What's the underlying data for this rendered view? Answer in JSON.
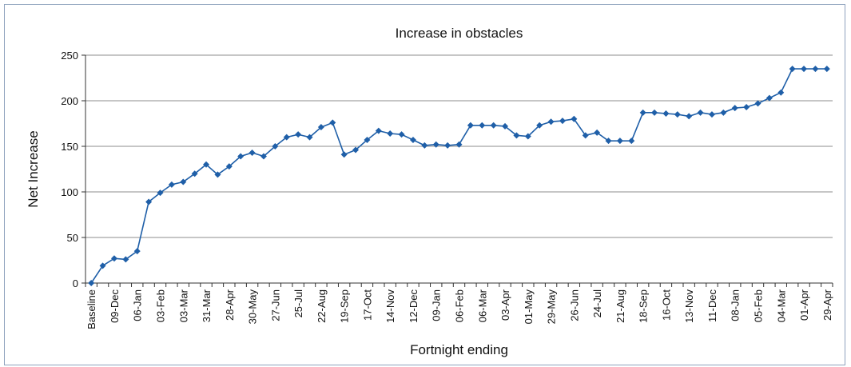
{
  "chart_data": {
    "type": "line",
    "title": "Increase in obstacles",
    "xlabel": "Fortnight ending",
    "ylabel": "Net Increase",
    "ylim": [
      0,
      250
    ],
    "yticks": [
      0,
      50,
      100,
      150,
      200,
      250
    ],
    "grid": "horizontal",
    "legend": "none",
    "line_color": "#1f5fa8",
    "categories": [
      "Baseline",
      "",
      "09-Dec",
      "",
      "06-Jan",
      "",
      "03-Feb",
      "",
      "03-Mar",
      "",
      "31-Mar",
      "",
      "28-Apr",
      "",
      "30-May",
      "",
      "27-Jun",
      "",
      "25-Jul",
      "",
      "22-Aug",
      "",
      "19-Sep",
      "",
      "17-Oct",
      "",
      "14-Nov",
      "",
      "12-Dec",
      "",
      "09-Jan",
      "",
      "06-Feb",
      "",
      "06-Mar",
      "",
      "03-Apr",
      "",
      "01-May",
      "",
      "29-May",
      "",
      "26-Jun",
      "",
      "24-Jul",
      "",
      "21-Aug",
      "",
      "18-Sep",
      "",
      "16-Oct",
      "",
      "13-Nov",
      "",
      "11-Dec",
      "",
      "08-Jan",
      "",
      "05-Feb",
      "",
      "04-Mar",
      "",
      "01-Apr",
      "",
      "29-Apr"
    ],
    "values": [
      0,
      19,
      27,
      26,
      35,
      89,
      99,
      108,
      111,
      120,
      130,
      119,
      128,
      139,
      143,
      139,
      150,
      160,
      163,
      160,
      171,
      176,
      141,
      146,
      157,
      167,
      164,
      163,
      157,
      151,
      152,
      151,
      152,
      173,
      173,
      173,
      172,
      162,
      161,
      173,
      177,
      178,
      180,
      162,
      165,
      156,
      156,
      156,
      187,
      187,
      186,
      185,
      183,
      187,
      185,
      187,
      192,
      193,
      197,
      203,
      209,
      235,
      235,
      235,
      235
    ]
  }
}
